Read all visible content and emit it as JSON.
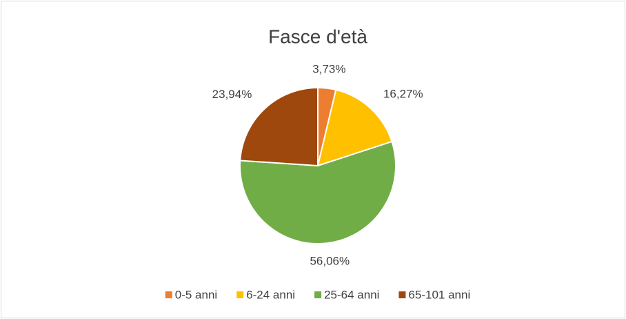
{
  "chart_data": {
    "type": "pie",
    "title": "Fasce d'età",
    "categories": [
      "0-5 anni",
      "6-24 anni",
      "25-64 anni",
      "65-101 anni"
    ],
    "values": [
      3.73,
      16.27,
      56.06,
      23.94
    ],
    "value_labels": [
      "3,73%",
      "16,27%",
      "56,06%",
      "23,94%"
    ],
    "colors": [
      "#ED7D31",
      "#FFC000",
      "#70AD47",
      "#9E480E"
    ],
    "legend": "bottom"
  }
}
